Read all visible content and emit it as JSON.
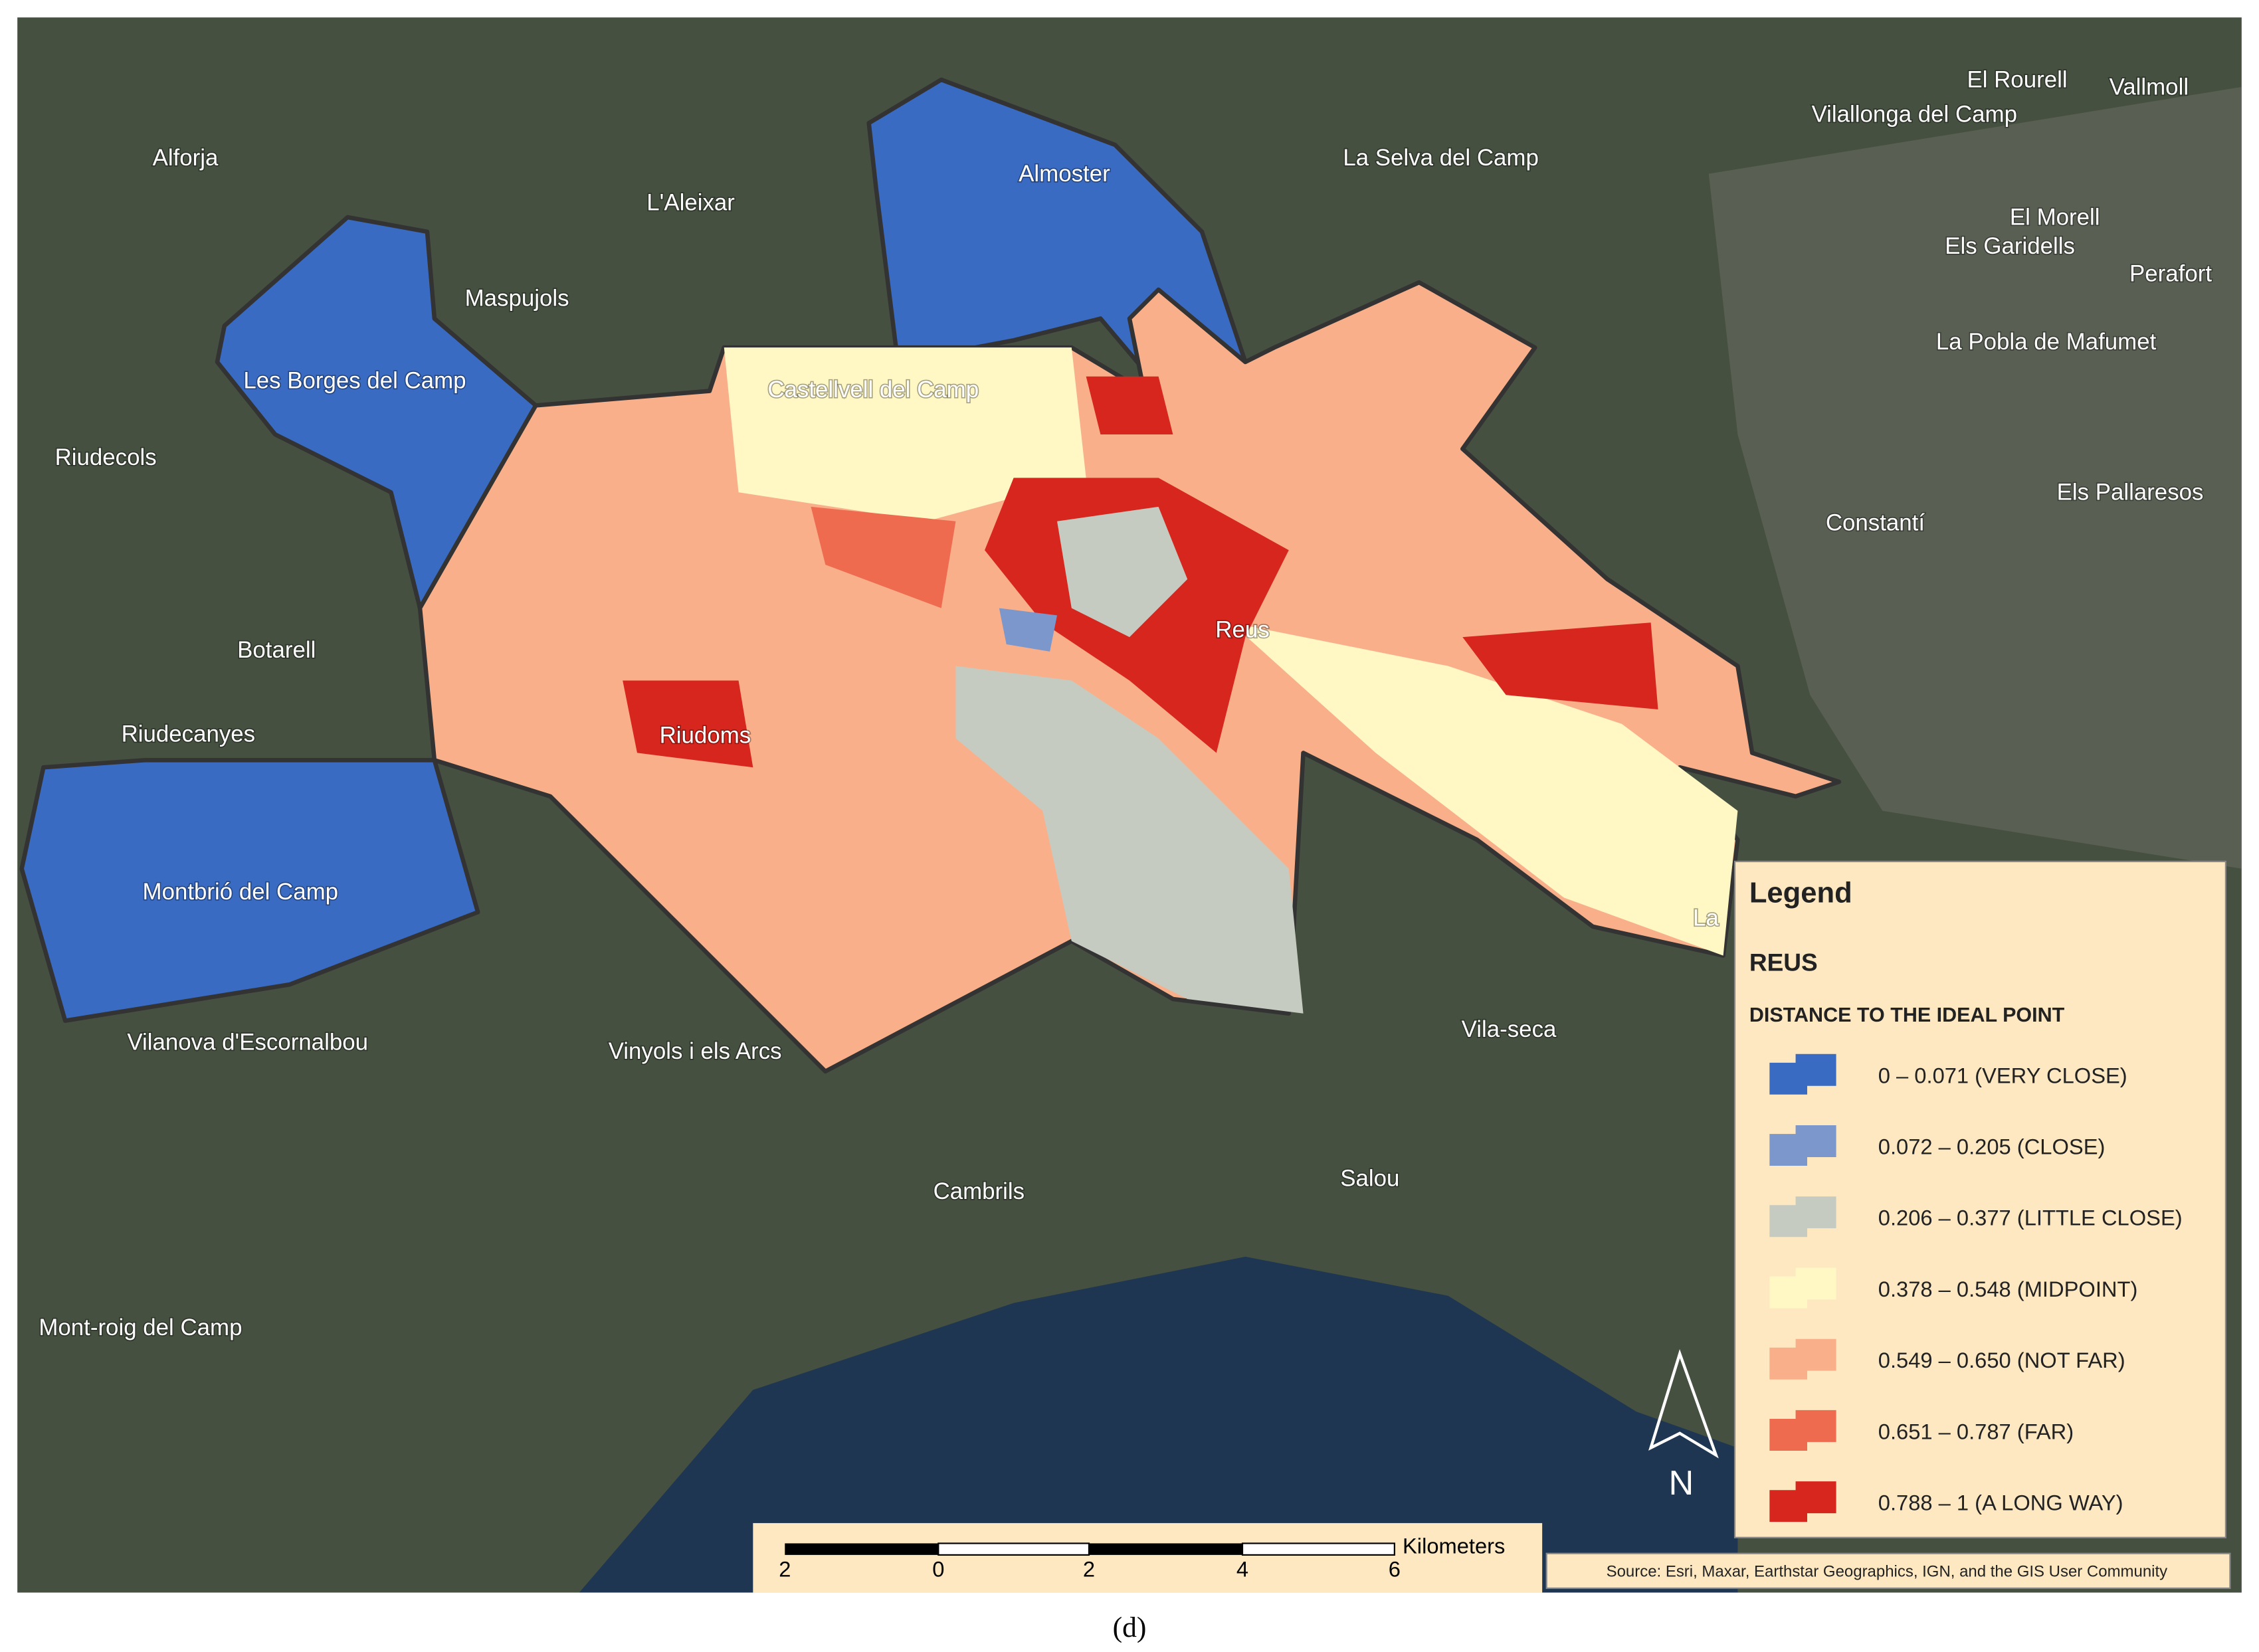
{
  "places": [
    "Alforja",
    "L'Aleixar",
    "Maspujols",
    "Les Borges del Camp",
    "Riudecols",
    "Botarell",
    "Riudecanyes",
    "Montbrió del Camp",
    "Vilanova d'Escornalbou",
    "Vinyols i els Arcs",
    "Almoster",
    "La Selva del Camp",
    "El Rourell",
    "Vallmoll",
    "Vilallonga del Camp",
    "El Morell",
    "Els Garidells",
    "Perafort",
    "La Pobla de Mafumet",
    "Els Pallaresos",
    "Constantí",
    "Castellvell del Camp",
    "Reus",
    "Riudoms",
    "Vila-seca",
    "Cambrils",
    "Salou",
    "Mont-roig del Camp",
    "La"
  ],
  "legend": {
    "title": "Legend",
    "layer": "REUS",
    "field": "DISTANCE TO THE IDEAL POINT",
    "items": [
      {
        "label": "0 – 0.071 (VERY CLOSE)",
        "color": "#3a6bc2"
      },
      {
        "label": "0.072 – 0.205 (CLOSE)",
        "color": "#7b97cc"
      },
      {
        "label": "0.206 – 0.377 (LITTLE CLOSE)",
        "color": "#c5cbc0"
      },
      {
        "label": "0.378 – 0.548 (MIDPOINT)",
        "color": "#fff7c4"
      },
      {
        "label": "0.549 – 0.650 (NOT FAR)",
        "color": "#f9b08a"
      },
      {
        "label": "0.651 – 0.787 (FAR)",
        "color": "#ee6b50"
      },
      {
        "label": "0.788 – 1 (A LONG WAY)",
        "color": "#d7261e"
      }
    ]
  },
  "scale_bar": {
    "labels": [
      "2",
      "0",
      "2",
      "4",
      "6"
    ],
    "unit": "Kilometers"
  },
  "north": "N",
  "source": "Source: Esri, Maxar, Earthstar Geographics, IGN, and the GIS User Community",
  "caption": "(d)"
}
